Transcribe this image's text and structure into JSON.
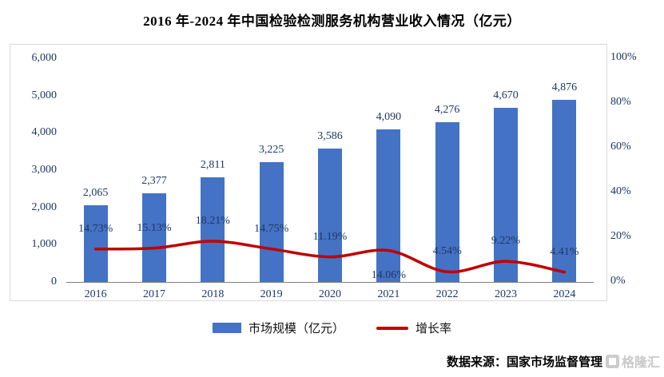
{
  "title": "2016 年-2024 年中国检验检测服务机构营业收入情况（亿元）",
  "source": {
    "label": "数据来源：国家市场监督管理",
    "watermark": "格隆汇"
  },
  "colors": {
    "bar": "#4472C4",
    "line": "#C00000",
    "axis_text": "#1F3864",
    "frame_border": "#D9D9D9",
    "axis_line": "#808080",
    "watermark": "#C9C9C9"
  },
  "chart_data": {
    "type": "bar+line",
    "title": "2016 年-2024 年中国检验检测服务机构营业收入情况（亿元）",
    "categories": [
      "2016",
      "2017",
      "2018",
      "2019",
      "2020",
      "2021",
      "2022",
      "2023",
      "2024"
    ],
    "series": [
      {
        "name": "市场规模（亿元）",
        "type": "bar",
        "axis": "left",
        "color": "#4472C4",
        "values": [
          2065,
          2377,
          2811,
          3225,
          3586,
          4090,
          4276,
          4670,
          4876
        ],
        "data_labels": [
          "2,065",
          "2,377",
          "2,811",
          "3,225",
          "3,586",
          "4,090",
          "4,276",
          "4,670",
          "4,876"
        ]
      },
      {
        "name": "增长率",
        "type": "line",
        "axis": "right",
        "color": "#C00000",
        "values": [
          14.73,
          15.13,
          18.21,
          14.75,
          11.19,
          14.06,
          4.54,
          9.22,
          4.41
        ],
        "data_labels": [
          "14.73%",
          "15.13%",
          "18.21%",
          "14.75%",
          "11.19%",
          "14.06%",
          "4.54%",
          "9.22%",
          "4.41%"
        ]
      }
    ],
    "left_axis": {
      "min": 0,
      "max": 6000,
      "tick_labels": [
        "6,000",
        "5,000",
        "4,000",
        "3,000",
        "2,000",
        "1,000",
        "0"
      ]
    },
    "right_axis": {
      "min": 0,
      "max": 100,
      "tick_labels": [
        "100%",
        "80%",
        "60%",
        "40%",
        "20%",
        "0%"
      ]
    },
    "grid": false,
    "legend_position": "bottom",
    "label_below_indices": [
      5
    ]
  }
}
